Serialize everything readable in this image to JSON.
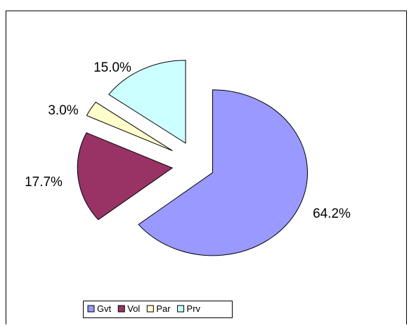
{
  "chart_data": {
    "type": "pie",
    "categories": [
      "Gvt",
      "Vol",
      "Par",
      "Prv"
    ],
    "values": [
      64.2,
      17.7,
      3.0,
      15.0
    ],
    "value_labels": [
      "64.2%",
      "17.7%",
      "3.0%",
      "15.0%"
    ],
    "colors": [
      "#9999ff",
      "#993366",
      "#ffffcc",
      "#ccffff"
    ],
    "legend": "bottom"
  }
}
